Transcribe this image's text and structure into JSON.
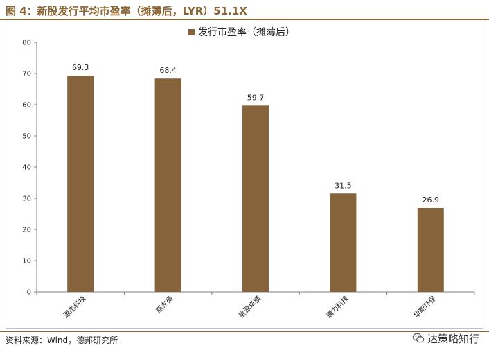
{
  "figure": {
    "title": "图 4：新股发行平均市盈率（摊薄后，LYR）51.1X",
    "source": "资料来源：Wind，德邦研究所",
    "watermark": "达策略知行"
  },
  "colors": {
    "accent": "#8a6432",
    "bar": "#86633a",
    "axis": "#7f7f7f",
    "text": "#222222"
  },
  "chart_data": {
    "type": "bar",
    "title": "",
    "categories": [
      "源杰科技",
      "燕东微",
      "星源卓镁",
      "通力科技",
      "华新环保"
    ],
    "series": [
      {
        "name": "发行市盈率（摊薄后）",
        "values": [
          69.3,
          68.4,
          59.7,
          31.5,
          26.9
        ]
      }
    ],
    "value_labels": [
      "69.3",
      "68.4",
      "59.7",
      "31.5",
      "26.9"
    ],
    "yticks": [
      0,
      10,
      20,
      30,
      40,
      50,
      60,
      70,
      80
    ],
    "ylim": [
      0,
      80
    ],
    "xlabel": "",
    "ylabel": "",
    "legend": "top-center",
    "grid": false
  }
}
